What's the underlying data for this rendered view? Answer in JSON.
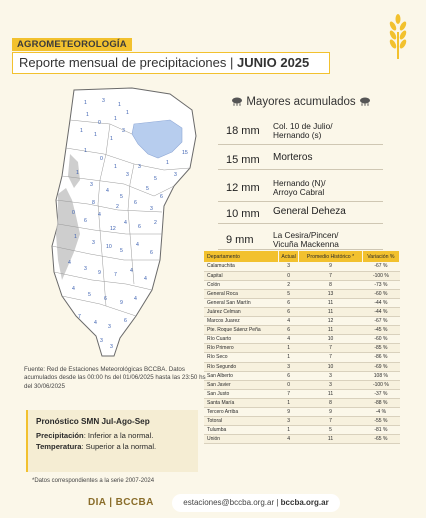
{
  "header": {
    "tag": "AGROMETEOROLOGÍA",
    "title_normal": "Reporte mensual de precipitaciones | ",
    "title_bold": "JUNIO 2025"
  },
  "map": {
    "labels": [
      "1",
      "2",
      "3",
      "4",
      "5",
      "6",
      "7",
      "8",
      "9",
      "10",
      "11",
      "12"
    ]
  },
  "source_note": "Fuente: Red de Estaciones Meteorológicas BCCBA. Datos acumulados desde las 00:00 hs del 01/06/2025 hasta las 23:50 hs del 30/06/2025",
  "forecast": {
    "title": "Pronóstico SMN Jul-Ago-Sep",
    "precip_label": "Precipitación",
    "precip_value": ": Inferior a la normal.",
    "temp_label": "Temperatura",
    "temp_value": ": Superior a la normal."
  },
  "series_note": "*Datos correspondientes a la serie 2007-2024",
  "footer": {
    "brand": "DIA | BCCBA",
    "email": "estaciones@bccba.org.ar",
    "sep": " | ",
    "site": "bccba.org.ar"
  },
  "accumulated": {
    "title": "Mayores acumulados",
    "rows": [
      {
        "mm": "18 mm",
        "loc": "Col. 10 de Julio/\nHernando (s)"
      },
      {
        "mm": "15 mm",
        "loc": "Morteros"
      },
      {
        "mm": "12 mm",
        "loc": "Hernando (N)/\nArroyo Cabral"
      },
      {
        "mm": "10 mm",
        "loc": "General Deheza"
      },
      {
        "mm": "9 mm",
        "loc": "La Cesira/Pincen/\nVicuña Mackenna"
      }
    ]
  },
  "table": {
    "headers": [
      "Departamento",
      "Actual",
      "Promedio Histórico *",
      "Variación %"
    ],
    "rows": [
      [
        "Calamuchita",
        "3",
        "9",
        "-67 %"
      ],
      [
        "Capital",
        "0",
        "7",
        "-100 %"
      ],
      [
        "Colón",
        "2",
        "8",
        "-73 %"
      ],
      [
        "General Roca",
        "5",
        "13",
        "-60 %"
      ],
      [
        "General San Martín",
        "6",
        "11",
        "-44 %"
      ],
      [
        "Juárez Celman",
        "6",
        "11",
        "-44 %"
      ],
      [
        "Marcos Juarez",
        "4",
        "12",
        "-67 %"
      ],
      [
        "Pte. Roque Sáenz Peña",
        "6",
        "11",
        "-45 %"
      ],
      [
        "Río Cuarto",
        "4",
        "10",
        "-60 %"
      ],
      [
        "Río Primero",
        "1",
        "7",
        "-85 %"
      ],
      [
        "Río Seco",
        "1",
        "7",
        "-86 %"
      ],
      [
        "Río Segundo",
        "3",
        "10",
        "-69 %"
      ],
      [
        "San Alberto",
        "6",
        "3",
        "108 %"
      ],
      [
        "San Javier",
        "0",
        "3",
        "-100 %"
      ],
      [
        "San Justo",
        "7",
        "11",
        "-37 %"
      ],
      [
        "Santa María",
        "1",
        "8",
        "-88 %"
      ],
      [
        "Tercero Arriba",
        "9",
        "9",
        "-4 %"
      ],
      [
        "Totoral",
        "3",
        "7",
        "-55 %"
      ],
      [
        "Tulumba",
        "1",
        "5",
        "-81 %"
      ],
      [
        "Unión",
        "4",
        "11",
        "-65 %"
      ]
    ]
  },
  "colors": {
    "accent": "#f2c12e",
    "background": "#fbf7e9",
    "lake": "#b7cdee"
  }
}
